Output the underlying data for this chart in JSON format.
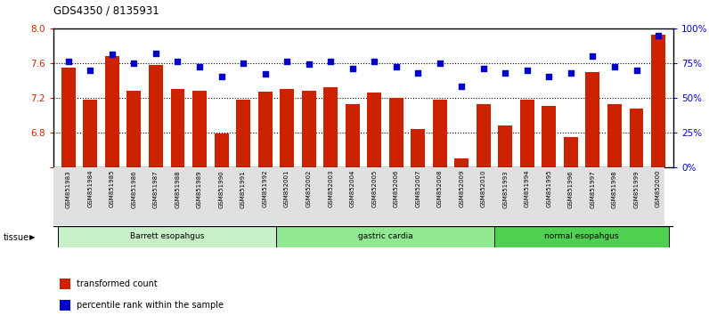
{
  "title": "GDS4350 / 8135931",
  "samples": [
    "GSM851983",
    "GSM851984",
    "GSM851985",
    "GSM851986",
    "GSM851987",
    "GSM851988",
    "GSM851989",
    "GSM851990",
    "GSM851991",
    "GSM851992",
    "GSM852001",
    "GSM852002",
    "GSM852003",
    "GSM852004",
    "GSM852005",
    "GSM852006",
    "GSM852007",
    "GSM852008",
    "GSM852009",
    "GSM852010",
    "GSM851993",
    "GSM851994",
    "GSM851995",
    "GSM851996",
    "GSM851997",
    "GSM851998",
    "GSM851999",
    "GSM852000"
  ],
  "bar_values": [
    7.55,
    7.18,
    7.68,
    7.28,
    7.58,
    7.3,
    7.28,
    6.79,
    7.18,
    7.27,
    7.3,
    7.28,
    7.32,
    7.13,
    7.26,
    7.2,
    6.84,
    7.18,
    6.5,
    7.13,
    6.88,
    7.18,
    7.1,
    6.75,
    7.5,
    7.13,
    7.07,
    7.93
  ],
  "dot_values": [
    76,
    70,
    81,
    75,
    82,
    76,
    72,
    65,
    75,
    67,
    76,
    74,
    76,
    71,
    76,
    72,
    68,
    75,
    58,
    71,
    68,
    70,
    65,
    68,
    80,
    72,
    70,
    95
  ],
  "groups": [
    {
      "label": "Barrett esopahgus",
      "start": 0,
      "end": 9,
      "color": "#c8f0c8"
    },
    {
      "label": "gastric cardia",
      "start": 10,
      "end": 19,
      "color": "#90e890"
    },
    {
      "label": "normal esopahgus",
      "start": 20,
      "end": 27,
      "color": "#50d050"
    }
  ],
  "bar_color": "#cc2200",
  "dot_color": "#0000cc",
  "ylim_left": [
    6.4,
    8.0
  ],
  "ybase": 6.4,
  "ylim_right": [
    0,
    100
  ],
  "yticks_left": [
    6.4,
    6.8,
    7.2,
    7.6,
    8.0
  ],
  "yticks_right": [
    0,
    25,
    50,
    75,
    100
  ],
  "ytick_labels_right": [
    "0%",
    "25%",
    "50%",
    "75%",
    "100%"
  ],
  "hlines": [
    6.8,
    7.2,
    7.6
  ],
  "legend_bar_label": "transformed count",
  "legend_dot_label": "percentile rank within the sample",
  "tissue_label": "tissue",
  "bar_width": 0.65,
  "background_color": "#ffffff"
}
